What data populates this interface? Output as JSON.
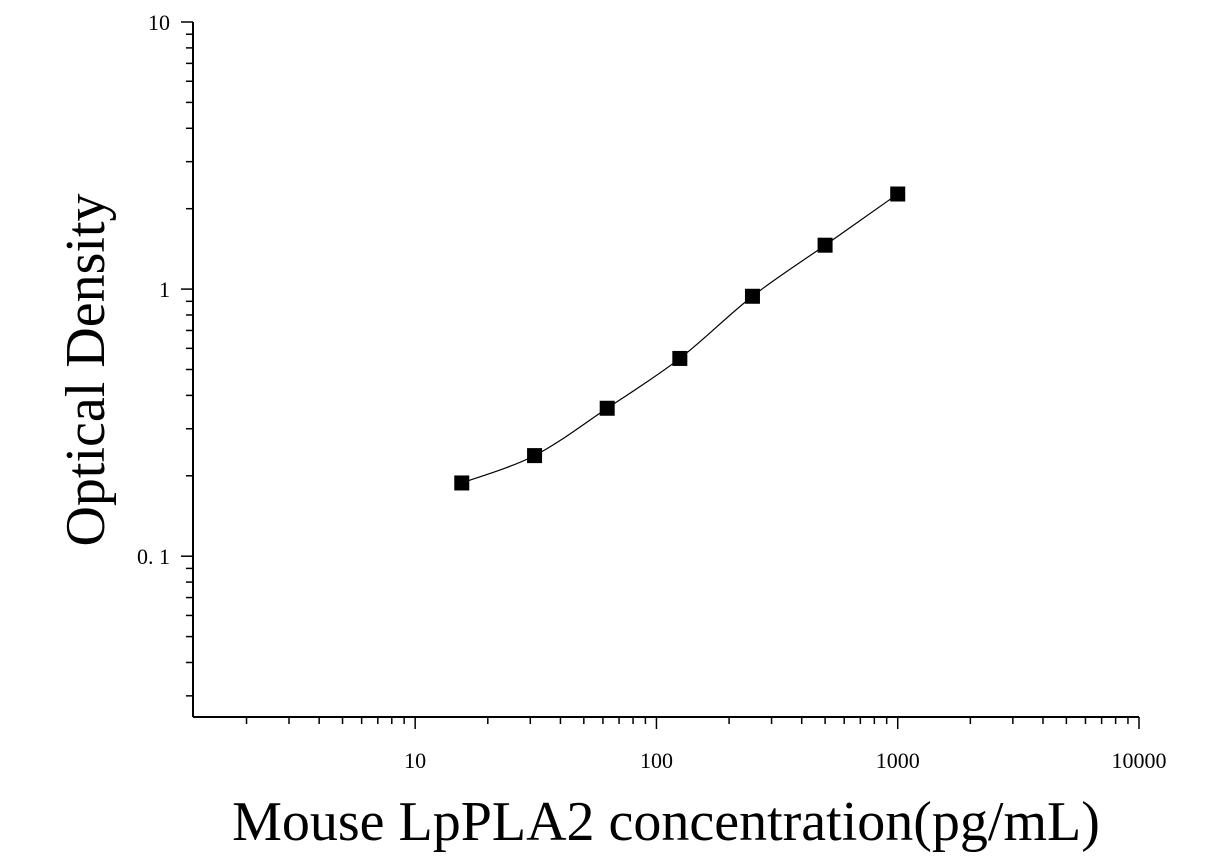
{
  "chart_data": {
    "type": "scatter",
    "title": "",
    "xlabel": "Mouse LpPLA2 concentration(pg/mL)",
    "ylabel": "Optical Density",
    "x_scale": "log",
    "y_scale": "log",
    "xlim": [
      1.2,
      10000
    ],
    "ylim": [
      0.025,
      10
    ],
    "x_ticks": [
      10,
      100,
      1000,
      10000
    ],
    "x_tick_labels": [
      "10",
      "100",
      "1000",
      "10000"
    ],
    "y_ticks": [
      0.1,
      1,
      10
    ],
    "y_tick_labels": [
      "0. 1",
      "1",
      "10"
    ],
    "grid": false,
    "legend": "none",
    "marker": "square",
    "series": [
      {
        "x": [
          15.6,
          31.25,
          62.5,
          125,
          250,
          500,
          1000
        ],
        "y": [
          0.188,
          0.238,
          0.358,
          0.55,
          0.94,
          1.46,
          2.27
        ],
        "fit_curve": true
      }
    ],
    "colors": {
      "marker": "#000000",
      "curve": "#000000",
      "axis": "#000000"
    }
  }
}
